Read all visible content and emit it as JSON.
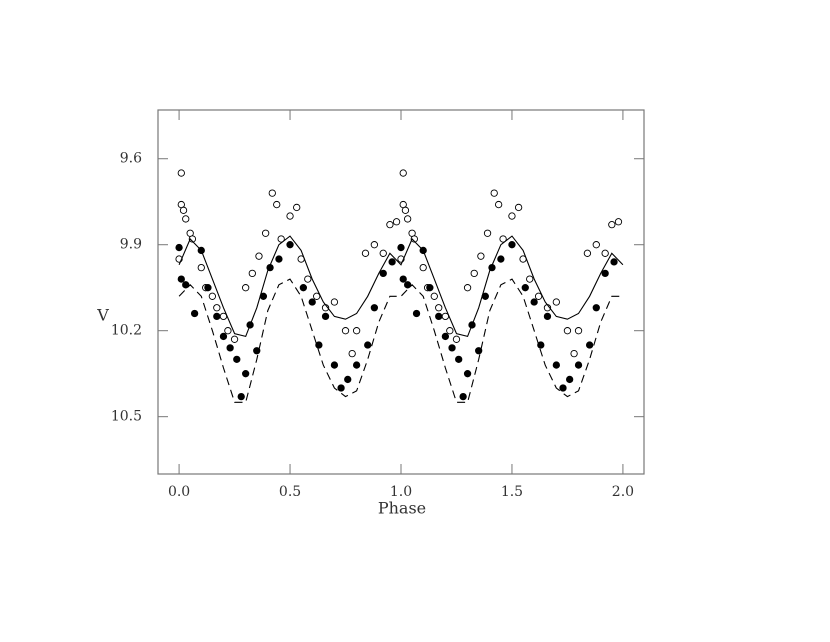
{
  "chart_data": {
    "type": "scatter",
    "x_label": "Phase",
    "y_label": "V",
    "xlim": [
      -0.095,
      2.095
    ],
    "ylim": [
      9.43,
      10.7
    ],
    "y_inverted": true,
    "xticks": [
      {
        "value": 0,
        "label": "0.0"
      },
      0.5,
      {
        "value": 1,
        "label": "1.0"
      },
      1.5,
      {
        "value": 2,
        "label": "2.0"
      }
    ],
    "yticks": [
      9.6,
      9.9,
      10.2,
      10.5
    ],
    "color": "#000000",
    "series": [
      {
        "marker": "open",
        "x": [
          0.01,
          0.01,
          0.02,
          0.03,
          0.05,
          0.0,
          0.06,
          0.1,
          0.12,
          0.15,
          0.17,
          0.2,
          0.22,
          0.25,
          0.3,
          0.33,
          0.36,
          0.39,
          0.42,
          0.44,
          0.46,
          0.5,
          0.53,
          0.55,
          0.58,
          0.62,
          0.66,
          0.7,
          0.75,
          0.78,
          0.8,
          0.84,
          0.88,
          0.92,
          0.95,
          0.98,
          1.01,
          1.01,
          1.02,
          1.03,
          1.05,
          1.0,
          1.06,
          1.1,
          1.12,
          1.15,
          1.17,
          1.2,
          1.22,
          1.25,
          1.3,
          1.33,
          1.36,
          1.39,
          1.42,
          1.44,
          1.46,
          1.5,
          1.53,
          1.55,
          1.58,
          1.62,
          1.66,
          1.7,
          1.75,
          1.78,
          1.8,
          1.84,
          1.88,
          1.92,
          1.95,
          1.98
        ],
        "values": [
          9.65,
          9.76,
          9.78,
          9.81,
          9.86,
          9.95,
          9.88,
          9.98,
          10.05,
          10.08,
          10.12,
          10.15,
          10.2,
          10.23,
          10.05,
          10.0,
          9.94,
          9.86,
          9.72,
          9.76,
          9.88,
          9.8,
          9.77,
          9.95,
          10.02,
          10.08,
          10.12,
          10.1,
          10.2,
          10.28,
          10.2,
          9.93,
          9.9,
          9.93,
          9.83,
          9.82,
          9.65,
          9.76,
          9.78,
          9.81,
          9.86,
          9.95,
          9.88,
          9.98,
          10.05,
          10.08,
          10.12,
          10.15,
          10.2,
          10.23,
          10.05,
          10.0,
          9.94,
          9.86,
          9.72,
          9.76,
          9.88,
          9.8,
          9.77,
          9.95,
          10.02,
          10.08,
          10.12,
          10.1,
          10.2,
          10.28,
          10.2,
          9.93,
          9.9,
          9.93,
          9.83,
          9.82
        ]
      },
      {
        "marker": "filled",
        "x": [
          0.0,
          0.01,
          0.03,
          0.07,
          0.1,
          0.13,
          0.17,
          0.2,
          0.23,
          0.26,
          0.28,
          0.3,
          0.32,
          0.35,
          0.38,
          0.41,
          0.45,
          0.5,
          0.56,
          0.6,
          0.63,
          0.66,
          0.7,
          0.73,
          0.76,
          0.8,
          0.85,
          0.88,
          0.92,
          0.96,
          1.0,
          1.01,
          1.03,
          1.07,
          1.1,
          1.13,
          1.17,
          1.2,
          1.23,
          1.26,
          1.28,
          1.3,
          1.32,
          1.35,
          1.38,
          1.41,
          1.45,
          1.5,
          1.56,
          1.6,
          1.63,
          1.66,
          1.7,
          1.73,
          1.76,
          1.8,
          1.85,
          1.88,
          1.92,
          1.96
        ],
        "values": [
          9.91,
          10.02,
          10.04,
          10.14,
          9.92,
          10.05,
          10.15,
          10.22,
          10.26,
          10.3,
          10.43,
          10.35,
          10.18,
          10.27,
          10.08,
          9.98,
          9.95,
          9.9,
          10.05,
          10.1,
          10.25,
          10.15,
          10.32,
          10.4,
          10.37,
          10.32,
          10.25,
          10.12,
          10.0,
          9.96,
          9.91,
          10.02,
          10.04,
          10.14,
          9.92,
          10.05,
          10.15,
          10.22,
          10.26,
          10.3,
          10.43,
          10.35,
          10.18,
          10.27,
          10.08,
          9.98,
          9.95,
          9.9,
          10.05,
          10.1,
          10.25,
          10.15,
          10.32,
          10.4,
          10.37,
          10.32,
          10.25,
          10.12,
          10.0,
          9.96
        ]
      },
      {
        "marker": "line",
        "dash": "solid",
        "x": [
          0,
          0.05,
          0.1,
          0.15,
          0.2,
          0.25,
          0.3,
          0.35,
          0.4,
          0.45,
          0.5,
          0.55,
          0.6,
          0.65,
          0.7,
          0.75,
          0.8,
          0.85,
          0.9,
          0.95,
          1,
          1.05,
          1.1,
          1.15,
          1.2,
          1.25,
          1.3,
          1.35,
          1.4,
          1.45,
          1.5,
          1.55,
          1.6,
          1.65,
          1.7,
          1.75,
          1.8,
          1.85,
          1.9,
          1.95,
          2
        ],
        "values": [
          9.97,
          9.88,
          9.92,
          10.02,
          10.12,
          10.21,
          10.22,
          10.12,
          9.99,
          9.9,
          9.87,
          9.92,
          10.02,
          10.1,
          10.15,
          10.16,
          10.14,
          10.08,
          10.0,
          9.93,
          9.97,
          9.88,
          9.92,
          10.02,
          10.12,
          10.21,
          10.22,
          10.12,
          9.99,
          9.9,
          9.87,
          9.92,
          10.02,
          10.1,
          10.15,
          10.16,
          10.14,
          10.08,
          10.0,
          9.93,
          9.97
        ]
      },
      {
        "marker": "line",
        "dash": "dashed",
        "x": [
          0,
          0.05,
          0.1,
          0.15,
          0.2,
          0.25,
          0.3,
          0.35,
          0.4,
          0.45,
          0.5,
          0.55,
          0.6,
          0.65,
          0.7,
          0.75,
          0.8,
          0.85,
          0.9,
          0.95,
          1,
          1.05,
          1.1,
          1.15,
          1.2,
          1.25,
          1.3,
          1.35,
          1.4,
          1.45,
          1.5,
          1.55,
          1.6,
          1.65,
          1.7,
          1.75,
          1.8,
          1.85,
          1.9,
          1.95,
          2
        ],
        "values": [
          10.08,
          10.04,
          10.08,
          10.2,
          10.33,
          10.45,
          10.45,
          10.3,
          10.13,
          10.04,
          10.02,
          10.08,
          10.2,
          10.32,
          10.4,
          10.43,
          10.41,
          10.3,
          10.17,
          10.08,
          10.08,
          10.04,
          10.08,
          10.2,
          10.33,
          10.45,
          10.45,
          10.3,
          10.13,
          10.04,
          10.02,
          10.08,
          10.2,
          10.32,
          10.4,
          10.43,
          10.41,
          10.3,
          10.17,
          10.08,
          10.08
        ]
      }
    ]
  }
}
